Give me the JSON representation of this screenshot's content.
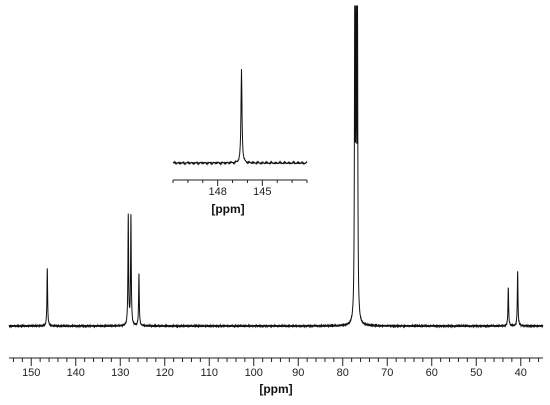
{
  "chart_data": [
    {
      "type": "line",
      "title": "",
      "xlabel": "[ppm]",
      "ylabel": "",
      "x_reversed": true,
      "xlim": [
        35,
        155
      ],
      "ylim": [
        0,
        100
      ],
      "x_ticks": [
        150,
        140,
        130,
        120,
        110,
        100,
        90,
        80,
        70,
        60,
        50,
        40
      ],
      "peaks": [
        {
          "ppm": 146.4,
          "height": 18
        },
        {
          "ppm": 128.2,
          "height": 34
        },
        {
          "ppm": 127.6,
          "height": 34
        },
        {
          "ppm": 125.8,
          "height": 16
        },
        {
          "ppm": 77.3,
          "height": 100
        },
        {
          "ppm": 77.0,
          "height": 100
        },
        {
          "ppm": 76.7,
          "height": 100
        },
        {
          "ppm": 42.8,
          "height": 12
        },
        {
          "ppm": 40.7,
          "height": 17
        }
      ]
    },
    {
      "type": "line",
      "title": "",
      "xlabel": "[ppm]",
      "ylabel": "",
      "x_reversed": true,
      "xlim": [
        142,
        151
      ],
      "ylim": [
        0,
        100
      ],
      "x_ticks": [
        148,
        145
      ],
      "peaks": [
        {
          "ppm": 146.4,
          "height": 100
        }
      ]
    }
  ]
}
